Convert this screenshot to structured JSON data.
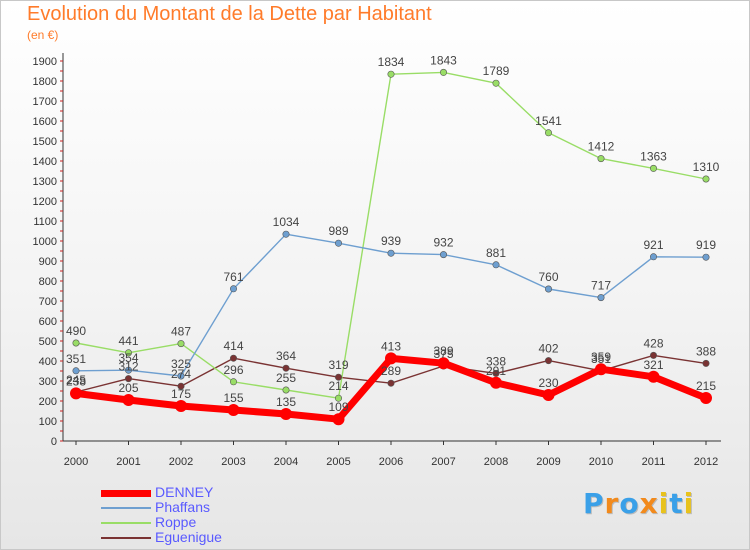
{
  "chart_data": {
    "type": "line",
    "title": "Evolution du Montant de la Dette par Habitant",
    "subtitle": "(en €)",
    "xlabel": "",
    "ylabel": "",
    "x": [
      "2000",
      "2001",
      "2002",
      "2003",
      "2004",
      "2005",
      "2006",
      "2007",
      "2008",
      "2009",
      "2010",
      "2011",
      "2012"
    ],
    "ylim": [
      0,
      1900
    ],
    "yticks": [
      "0",
      "100",
      "200",
      "300",
      "400",
      "500",
      "600",
      "700",
      "800",
      "900",
      "1000",
      "1100",
      "1200",
      "1300",
      "1400",
      "1500",
      "1600",
      "1700",
      "1800",
      "1900"
    ],
    "grid": false,
    "legend_position": "bottom-left",
    "series": [
      {
        "name": "DENNEY",
        "color": "#ff0000",
        "values": [
          238,
          205,
          175,
          155,
          135,
          109,
          413,
          389,
          291,
          230,
          359,
          321,
          215
        ],
        "labels": [
          "238",
          "205",
          "175",
          "155",
          "135",
          "109",
          "413",
          "389",
          "291",
          "230",
          "359",
          "321",
          "215"
        ]
      },
      {
        "name": "Phaffans",
        "color": "#6e9fd0",
        "values": [
          351,
          354,
          325,
          761,
          1034,
          989,
          939,
          932,
          881,
          760,
          717,
          921,
          919
        ],
        "labels": [
          "351",
          "354",
          "325",
          "761",
          "1034",
          "989",
          "939",
          "932",
          "881",
          "760",
          "717",
          "921",
          "919"
        ]
      },
      {
        "name": "Roppe",
        "color": "#99dd66",
        "values": [
          490,
          441,
          487,
          296,
          255,
          214,
          1834,
          1843,
          1789,
          1541,
          1412,
          1363,
          1310
        ],
        "labels": [
          "490",
          "441",
          "487",
          "296",
          "255",
          "214",
          "1834",
          "1843",
          "1789",
          "1541",
          "1412",
          "1363",
          "1310"
        ]
      },
      {
        "name": "Eguenigue",
        "color": "#7a3333",
        "values": [
          245,
          312,
          274,
          414,
          364,
          319,
          289,
          375,
          338,
          402,
          351,
          428,
          388
        ],
        "labels": [
          "245",
          "312",
          "274",
          "414",
          "364",
          "319",
          "289",
          "375",
          "338",
          "402",
          "351",
          "428",
          "388"
        ]
      }
    ]
  },
  "brand": {
    "letters": [
      "P",
      "r",
      "o",
      "x",
      "i",
      "t",
      "i"
    ],
    "colors": [
      "#3aa0e8",
      "#f28a1c",
      "#3aa0e8",
      "#f28a1c",
      "#e8c21c",
      "#3aa0e8",
      "#e8c21c"
    ]
  }
}
